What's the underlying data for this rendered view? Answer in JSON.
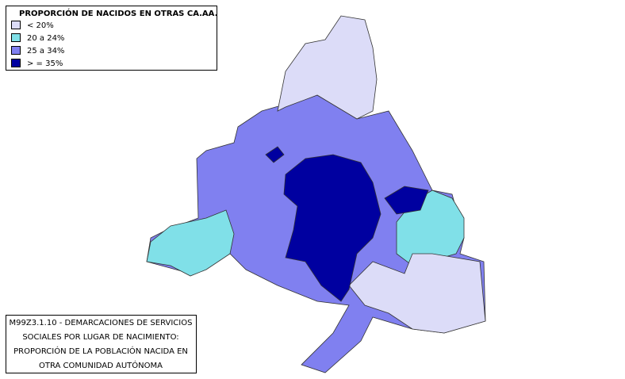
{
  "legend": {
    "title": "PROPORCIÓN DE NACIDOS EN OTRAS CA.AA.",
    "items": [
      {
        "label": "< 20%",
        "color": "#dcdcf8"
      },
      {
        "label": "20 a 24%",
        "color": "#80e0e8"
      },
      {
        "label": "25 a 34%",
        "color": "#8080f0"
      },
      {
        "label": "> = 35%",
        "color": "#0000a0"
      }
    ]
  },
  "caption": {
    "lines": [
      "M99Z3.1.10 - DEMARCACIONES DE SERVICIOS",
      "SOCIALES POR LUGAR DE NACIMIENTO:",
      "PROPORCIÓN DE LA POBLACIÓN NACIDA EN",
      "OTRA COMUNIDAD AUTÓNOMA"
    ]
  }
}
